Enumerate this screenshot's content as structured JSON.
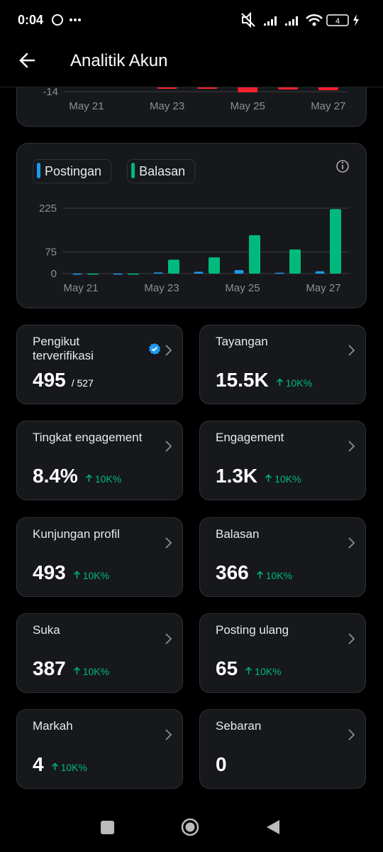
{
  "status_bar": {
    "time": "0:04",
    "battery": "4"
  },
  "header": {
    "title": "Analitik Akun"
  },
  "chart_data": [
    {
      "type": "bar",
      "categories": [
        "May 21",
        null,
        "May 23",
        null,
        "May 25",
        null,
        "May 27"
      ],
      "values": [
        null,
        null,
        -13.6,
        -13.6,
        -14.1,
        -13.7,
        -13.8
      ],
      "color": "#f4212e",
      "ylim": [
        -15,
        -13
      ],
      "yticks": [
        -14
      ],
      "grid": true
    },
    {
      "type": "bar",
      "categories": [
        "May 21",
        null,
        "May 23",
        null,
        "May 25",
        null,
        "May 27"
      ],
      "series": [
        {
          "name": "Postingan",
          "color": "#1d9bf0",
          "values": [
            0,
            0,
            4,
            6,
            12,
            3,
            8
          ]
        },
        {
          "name": "Balasan",
          "color": "#00ba7c",
          "values": [
            0,
            0,
            48,
            56,
            132,
            83,
            222
          ]
        }
      ],
      "ylim": [
        0,
        225
      ],
      "yticks": [
        0,
        75,
        225
      ],
      "grid": true,
      "legend": "top-left"
    }
  ],
  "metrics": [
    {
      "label": "Pengikut terverifikasi",
      "value": "495",
      "sub": "/ 527",
      "verified": true
    },
    {
      "label": "Tayangan",
      "value": "15.5K",
      "change": "10K%"
    },
    {
      "label": "Tingkat engagement",
      "value": "8.4%",
      "change": "10K%"
    },
    {
      "label": "Engagement",
      "value": "1.3K",
      "change": "10K%"
    },
    {
      "label": "Kunjungan profil",
      "value": "493",
      "change": "10K%"
    },
    {
      "label": "Balasan",
      "value": "366",
      "change": "10K%"
    },
    {
      "label": "Suka",
      "value": "387",
      "change": "10K%"
    },
    {
      "label": "Posting ulang",
      "value": "65",
      "change": "10K%"
    },
    {
      "label": "Markah",
      "value": "4",
      "change": "10K%"
    },
    {
      "label": "Sebaran",
      "value": "0"
    }
  ]
}
